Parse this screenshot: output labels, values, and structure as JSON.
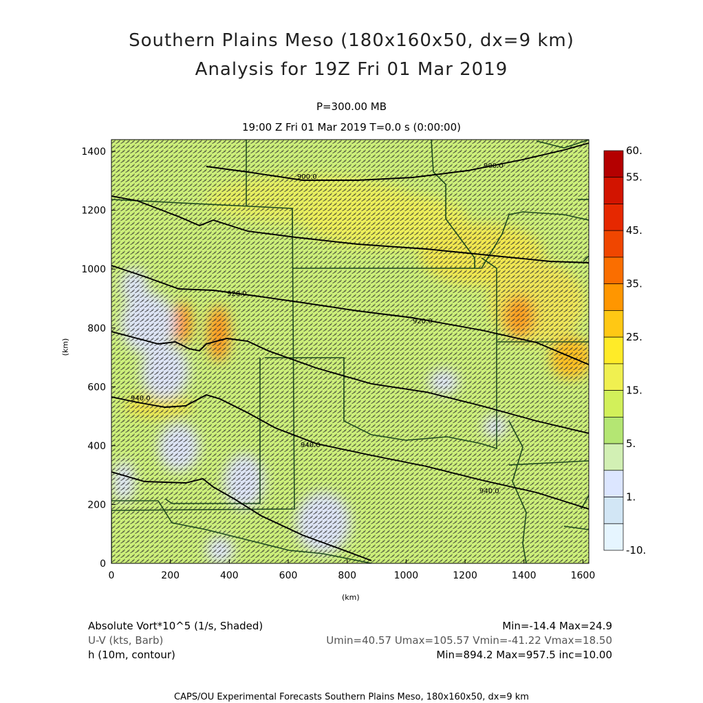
{
  "title": {
    "line1": "Southern Plains Meso (180x160x50, dx=9 km)",
    "line2": "Analysis for 19Z Fri 01 Mar 2019"
  },
  "subtitle": {
    "level": "P=300.00 MB",
    "time": "19:00 Z Fri 01 Mar 2019    T=0.0 s (0:00:00)"
  },
  "axes": {
    "x_label": "(km)",
    "y_label": "(km)",
    "x_ticks": [
      "0",
      "200",
      "400",
      "600",
      "800",
      "1000",
      "1200",
      "1400",
      "1600"
    ],
    "y_ticks": [
      "0",
      "200",
      "400",
      "600",
      "800",
      "1000",
      "1200",
      "1400"
    ],
    "x_range": [
      0,
      1620
    ],
    "y_range": [
      0,
      1440
    ]
  },
  "colorbar": {
    "labels": [
      "60.",
      "55.",
      "45.",
      "35.",
      "25.",
      "15.",
      "5.",
      "1.",
      "-10."
    ],
    "colors": [
      "#b40000",
      "#d21400",
      "#e62800",
      "#f04600",
      "#fa6e00",
      "#ff9600",
      "#ffc814",
      "#ffeb28",
      "#f0f050",
      "#d2f05a",
      "#b4e673",
      "#d2f0b4",
      "#dce6ff",
      "#d2e6f5",
      "#e6f5ff"
    ]
  },
  "contours": {
    "label_values": [
      "900.0",
      "900.0",
      "920.0",
      "920.0",
      "940.0",
      "940.0",
      "940.0"
    ],
    "line_color": "#000000"
  },
  "legend": {
    "row1_left": "Absolute Vort*10^5 (1/s, Shaded)",
    "row1_right": "Min=-14.4 Max=24.9",
    "row2_left": "U-V (kts, Barb)",
    "row2_right": "Umin=40.57 Umax=105.57 Vmin=-41.22 Vmax=18.50",
    "row3_left": "h (10m, contour)",
    "row3_right": "Min=894.2 Max=957.5 inc=10.00"
  },
  "footer": "CAPS/OU Experimental Forecasts  Southern Plains Meso, 180x160x50, dx=9 km"
}
